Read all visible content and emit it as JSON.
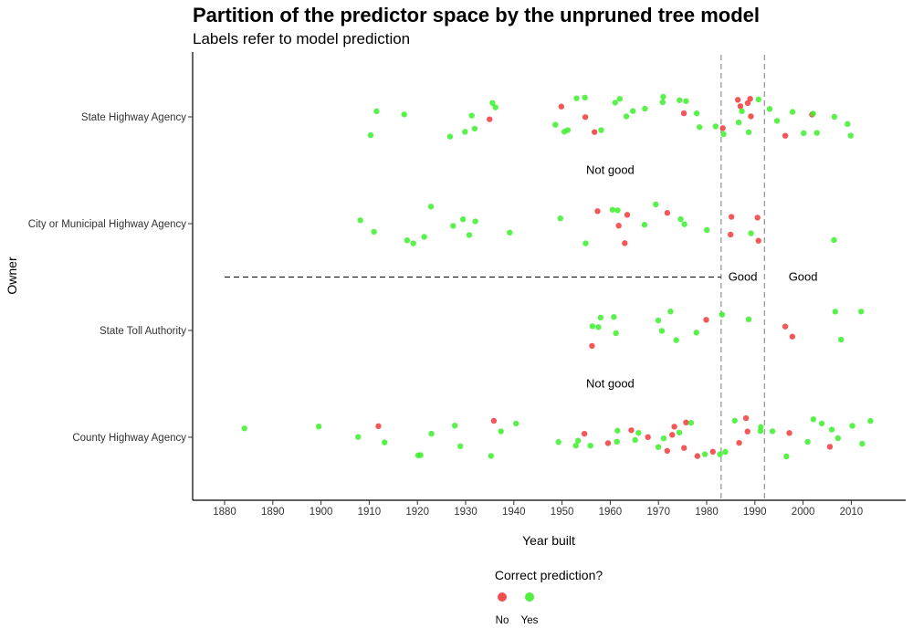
{
  "chart_data": {
    "type": "scatter",
    "title": "Partition of the predictor space by the unpruned tree model",
    "subtitle": "Labels refer to model prediction",
    "xlabel": "Year built",
    "ylabel": "Owner",
    "xlim": [
      1875,
      2020
    ],
    "xticks": [
      1880,
      1890,
      1900,
      1910,
      1920,
      1930,
      1940,
      1950,
      1960,
      1970,
      1980,
      1990,
      2000,
      2010
    ],
    "categories": [
      "State Highway Agency",
      "City or Municipal Highway Agency",
      "State Toll Authority",
      "County Highway Agency"
    ],
    "grid": false,
    "colors": {
      "No": "#f03b3b",
      "Yes": "#3bf02b"
    },
    "partition": {
      "vertical_x": [
        1983,
        1992
      ],
      "horizontal_between": [
        "City or Municipal Highway Agency",
        "State Toll Authority"
      ],
      "horizontal_x_range": [
        1880,
        1983
      ]
    },
    "region_labels": [
      {
        "text": "Not good",
        "x": 1960,
        "between": [
          "State Highway Agency",
          "City or Municipal Highway Agency"
        ]
      },
      {
        "text": "Good",
        "x": 1987.5,
        "between": [
          "City or Municipal Highway Agency",
          "State Toll Authority"
        ]
      },
      {
        "text": "Good",
        "x": 2000,
        "between": [
          "City or Municipal Highway Agency",
          "State Toll Authority"
        ]
      },
      {
        "text": "Not good",
        "x": 1960,
        "between": [
          "State Toll Authority",
          "County Highway Agency"
        ]
      }
    ],
    "legend": {
      "title": "Correct prediction?",
      "entries": [
        "No",
        "Yes"
      ],
      "position": "bottom"
    },
    "series": [
      {
        "name": "No",
        "points": [
          {
            "cat": "State Highway Agency",
            "x": [
              1935,
              1951,
              1955,
              1958,
              1975,
              1984,
              1986,
              1987,
              1988,
              1989,
              1990,
              1995,
              2003
            ]
          },
          {
            "cat": "City or Municipal Highway Agency",
            "x": [
              1956,
              1962,
              1963,
              1964,
              1972,
              1985,
              1986,
              1991,
              1992
            ]
          },
          {
            "cat": "State Toll Authority",
            "x": [
              1957,
              1980,
              1996,
              1997
            ]
          },
          {
            "cat": "County Highway Agency",
            "x": [
              1913,
              1936,
              1956,
              1959,
              1963,
              1968,
              1972,
              1973,
              1974,
              1975,
              1976,
              1977,
              1980,
              1986,
              1988,
              1989,
              1998,
              2005
            ]
          }
        ]
      },
      {
        "name": "Yes",
        "points": [
          {
            "cat": "State Highway Agency",
            "x": [
              1911,
              1913,
              1917,
              1928,
              1930,
              1931,
              1933,
              1935,
              1937,
              1948,
              1950,
              1952,
              1954,
              1956,
              1958,
              1960,
              1962,
              1964,
              1966,
              1968,
              1970,
              1972,
              1974,
              1976,
              1978,
              1980,
              1982,
              1984,
              1986,
              1988,
              1990,
              1992,
              1994,
              1996,
              1998,
              2000,
              2002,
              2004,
              2006,
              2008,
              2010
            ]
          },
          {
            "cat": "City or Municipal Highway Agency",
            "x": [
              1907,
              1911,
              1917,
              1919,
              1921,
              1923,
              1926,
              1929,
              1930,
              1932,
              1938,
              1951,
              1955,
              1960,
              1961,
              1968,
              1970,
              1974,
              1976,
              1981,
              1990,
              2007
            ]
          },
          {
            "cat": "State Toll Authority",
            "x": [
              1956,
              1957,
              1958,
              1960,
              1962,
              1970,
              1971,
              1973,
              1975,
              1978,
              1982,
              1989,
              2007,
              2009,
              2011
            ]
          },
          {
            "cat": "County Highway Agency",
            "x": [
              1884,
              1900,
              1907,
              1914,
              1919,
              1921,
              1922,
              1929,
              1930,
              1935,
              1938,
              1941,
              1948,
              1952,
              1954,
              1957,
              1960,
              1962,
              1965,
              1967,
              1969,
              1971,
              1974,
              1978,
              1980,
              1982,
              1984,
              1986,
              1990,
              1992,
              1995,
              1997,
              2000,
              2002,
              2004,
              2006,
              2008,
              2010,
              2012,
              2014
            ]
          }
        ]
      }
    ]
  }
}
